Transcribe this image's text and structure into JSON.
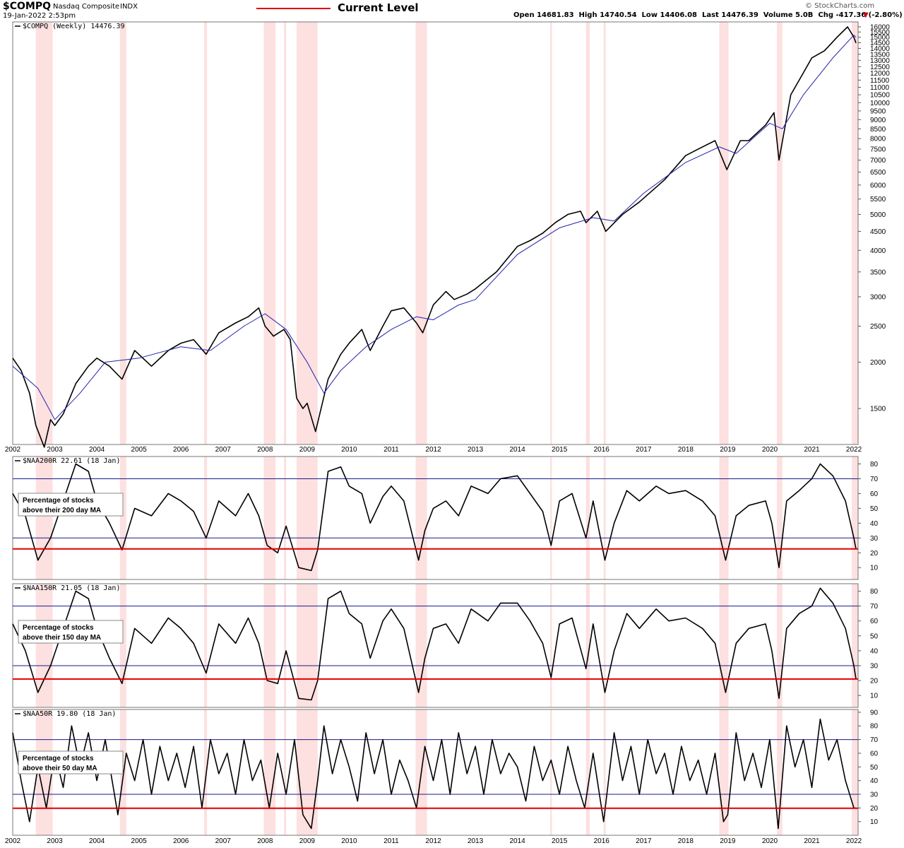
{
  "header": {
    "symbol": "$COMPQ",
    "name": "Nasdaq Composite",
    "exchange": "INDX",
    "date": "19-Jan-2022 2:53pm",
    "legend_label": "Current Level",
    "legend_color": "#e00000",
    "watermark": "© StockCharts.com",
    "ohlc": "Open 14681.83  High 14740.54  Low 14406.08  Last 14476.39  Volume 5.0B  Chg -417.36 (-2.80%)"
  },
  "colors": {
    "price": "#000000",
    "ma": "#2222aa",
    "shade": "#fde0e0",
    "level_line": "#e00000",
    "ref_line": "#1a1a8c"
  },
  "chart_data": [
    {
      "type": "line",
      "title": "$COMPQ (Weekly) 14476.39",
      "scale": "log",
      "ylim": [
        1200,
        16500
      ],
      "yticks": [
        1500,
        2000,
        2500,
        3000,
        3500,
        4000,
        4500,
        5000,
        5500,
        6000,
        6500,
        7000,
        7500,
        8000,
        8500,
        9000,
        9500,
        10000,
        10500,
        11000,
        11500,
        12000,
        12500,
        13000,
        13500,
        14000,
        14500,
        15000,
        15500,
        16000
      ],
      "xlim": [
        2002.0,
        2022.1
      ],
      "xticks": [
        "2002",
        "2003",
        "2004",
        "2005",
        "2006",
        "2007",
        "2008",
        "2009",
        "2010",
        "2011",
        "2012",
        "2013",
        "2014",
        "2015",
        "2016",
        "2017",
        "2018",
        "2019",
        "2020",
        "2021",
        "2022"
      ],
      "shaded_periods": [
        [
          2002.55,
          2002.95
        ],
        [
          2004.55,
          2004.7
        ],
        [
          2006.55,
          2006.62
        ],
        [
          2007.97,
          2008.25
        ],
        [
          2008.45,
          2008.5
        ],
        [
          2008.75,
          2009.25
        ],
        [
          2011.58,
          2011.85
        ],
        [
          2014.78,
          2014.82
        ],
        [
          2015.63,
          2015.72
        ],
        [
          2016.05,
          2016.1
        ],
        [
          2018.8,
          2019.02
        ],
        [
          2020.17,
          2020.3
        ],
        [
          2021.95,
          2022.1
        ]
      ],
      "series": [
        {
          "name": "$COMPQ (Weekly)",
          "x": [
            2002.0,
            2002.2,
            2002.4,
            2002.55,
            2002.75,
            2002.9,
            2003.0,
            2003.2,
            2003.5,
            2003.8,
            2004.0,
            2004.3,
            2004.6,
            2004.9,
            2005.3,
            2005.7,
            2006.0,
            2006.3,
            2006.6,
            2006.9,
            2007.3,
            2007.6,
            2007.85,
            2008.0,
            2008.2,
            2008.45,
            2008.6,
            2008.75,
            2008.9,
            2009.0,
            2009.2,
            2009.5,
            2009.8,
            2010.0,
            2010.3,
            2010.5,
            2010.8,
            2011.0,
            2011.3,
            2011.6,
            2011.75,
            2012.0,
            2012.3,
            2012.5,
            2012.8,
            2013.0,
            2013.5,
            2014.0,
            2014.3,
            2014.6,
            2014.9,
            2015.2,
            2015.5,
            2015.63,
            2015.9,
            2016.1,
            2016.5,
            2016.9,
            2017.5,
            2018.0,
            2018.3,
            2018.7,
            2018.98,
            2019.3,
            2019.5,
            2019.9,
            2020.1,
            2020.22,
            2020.5,
            2020.7,
            2021.0,
            2021.3,
            2021.6,
            2021.85,
            2022.0,
            2022.05
          ],
          "values": [
            2050,
            1900,
            1650,
            1350,
            1180,
            1400,
            1350,
            1450,
            1750,
            1950,
            2050,
            1950,
            1800,
            2150,
            1950,
            2150,
            2250,
            2300,
            2100,
            2400,
            2550,
            2650,
            2800,
            2500,
            2350,
            2450,
            2300,
            1600,
            1500,
            1550,
            1300,
            1800,
            2100,
            2250,
            2450,
            2150,
            2500,
            2750,
            2800,
            2550,
            2400,
            2850,
            3100,
            2950,
            3050,
            3150,
            3500,
            4100,
            4250,
            4450,
            4750,
            5000,
            5100,
            4750,
            5100,
            4500,
            5000,
            5400,
            6200,
            7200,
            7500,
            7900,
            6600,
            7900,
            7900,
            8700,
            9400,
            7000,
            10500,
            11500,
            13200,
            13800,
            15000,
            16000,
            15000,
            14476
          ]
        },
        {
          "name": "MA",
          "x": [
            2002.0,
            2002.6,
            2003.0,
            2003.6,
            2004.2,
            2005.0,
            2006.0,
            2006.7,
            2007.5,
            2008.0,
            2008.5,
            2009.0,
            2009.4,
            2009.8,
            2010.4,
            2011.0,
            2011.6,
            2012.0,
            2012.6,
            2013.0,
            2014.0,
            2015.0,
            2015.8,
            2016.3,
            2017.0,
            2018.0,
            2018.8,
            2019.2,
            2020.0,
            2020.3,
            2020.8,
            2021.5,
            2022.0,
            2022.05
          ],
          "values": [
            1950,
            1700,
            1400,
            1650,
            2000,
            2050,
            2200,
            2150,
            2500,
            2700,
            2450,
            2000,
            1650,
            1900,
            2200,
            2450,
            2650,
            2600,
            2850,
            2950,
            3900,
            4600,
            4900,
            4800,
            5700,
            6900,
            7600,
            7300,
            8800,
            8500,
            10500,
            13200,
            15200,
            15000
          ]
        }
      ]
    },
    {
      "type": "line",
      "title": "$NAA200R 22.61 (18 Jan)",
      "annotation_line1": "Percentage of stocks",
      "annotation_line2": "above their 200 day MA",
      "ylim": [
        2,
        85
      ],
      "yticks": [
        10,
        20,
        30,
        40,
        50,
        60,
        70,
        80
      ],
      "ref_lines": [
        30,
        70
      ],
      "current_level": 22.61,
      "series": [
        {
          "x": [
            2002.0,
            2002.3,
            2002.6,
            2002.9,
            2003.2,
            2003.5,
            2003.8,
            2004.0,
            2004.3,
            2004.6,
            2004.9,
            2005.3,
            2005.7,
            2006.0,
            2006.3,
            2006.6,
            2006.9,
            2007.3,
            2007.6,
            2007.85,
            2008.05,
            2008.3,
            2008.5,
            2008.8,
            2009.1,
            2009.25,
            2009.5,
            2009.8,
            2010.0,
            2010.3,
            2010.5,
            2010.8,
            2011.0,
            2011.3,
            2011.65,
            2011.8,
            2012.0,
            2012.3,
            2012.6,
            2012.9,
            2013.3,
            2013.6,
            2014.0,
            2014.3,
            2014.6,
            2014.8,
            2015.0,
            2015.3,
            2015.63,
            2015.8,
            2016.08,
            2016.3,
            2016.6,
            2016.9,
            2017.3,
            2017.6,
            2018.0,
            2018.4,
            2018.7,
            2018.95,
            2019.2,
            2019.5,
            2019.9,
            2020.05,
            2020.22,
            2020.4,
            2020.7,
            2021.0,
            2021.2,
            2021.5,
            2021.8,
            2022.0,
            2022.05
          ],
          "values": [
            60,
            45,
            15,
            30,
            55,
            80,
            75,
            55,
            40,
            22,
            50,
            45,
            60,
            55,
            48,
            30,
            55,
            45,
            60,
            45,
            25,
            20,
            38,
            10,
            8,
            22,
            75,
            78,
            65,
            60,
            40,
            58,
            65,
            55,
            15,
            35,
            50,
            55,
            45,
            65,
            60,
            70,
            72,
            60,
            48,
            25,
            55,
            60,
            30,
            55,
            15,
            40,
            62,
            55,
            65,
            60,
            62,
            55,
            45,
            15,
            45,
            52,
            55,
            40,
            10,
            55,
            62,
            70,
            80,
            72,
            55,
            30,
            22.61
          ]
        }
      ]
    },
    {
      "type": "line",
      "title": "$NAA150R 21.05 (18 Jan)",
      "annotation_line1": "Percentage of stocks",
      "annotation_line2": "above their 150 day MA",
      "ylim": [
        2,
        85
      ],
      "yticks": [
        10,
        20,
        30,
        40,
        50,
        60,
        70,
        80
      ],
      "ref_lines": [
        30,
        70
      ],
      "current_level": 21.05,
      "series": [
        {
          "x": [
            2002.0,
            2002.3,
            2002.6,
            2002.9,
            2003.2,
            2003.5,
            2003.8,
            2004.0,
            2004.3,
            2004.6,
            2004.9,
            2005.3,
            2005.7,
            2006.0,
            2006.3,
            2006.6,
            2006.9,
            2007.3,
            2007.6,
            2007.85,
            2008.05,
            2008.3,
            2008.5,
            2008.8,
            2009.1,
            2009.25,
            2009.5,
            2009.8,
            2010.0,
            2010.3,
            2010.5,
            2010.8,
            2011.0,
            2011.3,
            2011.65,
            2011.8,
            2012.0,
            2012.3,
            2012.6,
            2012.9,
            2013.3,
            2013.6,
            2014.0,
            2014.3,
            2014.6,
            2014.8,
            2015.0,
            2015.3,
            2015.63,
            2015.8,
            2016.08,
            2016.3,
            2016.6,
            2016.9,
            2017.3,
            2017.6,
            2018.0,
            2018.4,
            2018.7,
            2018.95,
            2019.2,
            2019.5,
            2019.9,
            2020.05,
            2020.22,
            2020.4,
            2020.7,
            2021.0,
            2021.2,
            2021.5,
            2021.8,
            2022.0,
            2022.05
          ],
          "values": [
            58,
            40,
            12,
            30,
            55,
            80,
            75,
            55,
            35,
            18,
            55,
            45,
            62,
            55,
            45,
            25,
            58,
            45,
            62,
            45,
            20,
            18,
            40,
            8,
            7,
            20,
            75,
            80,
            65,
            58,
            35,
            60,
            68,
            55,
            12,
            35,
            55,
            58,
            45,
            68,
            60,
            72,
            72,
            60,
            45,
            22,
            58,
            62,
            28,
            58,
            12,
            40,
            65,
            55,
            68,
            60,
            62,
            55,
            45,
            12,
            45,
            55,
            58,
            40,
            8,
            55,
            65,
            70,
            82,
            72,
            55,
            30,
            21.05
          ]
        }
      ]
    },
    {
      "type": "line",
      "title": "$NAA50R 19.80 (18 Jan)",
      "annotation_line1": "Percentage of stocks",
      "annotation_line2": "above their 50 day MA",
      "ylim": [
        0,
        92
      ],
      "yticks": [
        10,
        20,
        30,
        40,
        50,
        60,
        70,
        80,
        90
      ],
      "ref_lines": [
        30,
        70
      ],
      "current_level": 19.8,
      "series": [
        {
          "x": [
            2002.0,
            2002.2,
            2002.4,
            2002.6,
            2002.8,
            2003.0,
            2003.2,
            2003.4,
            2003.6,
            2003.8,
            2004.0,
            2004.2,
            2004.5,
            2004.7,
            2004.9,
            2005.1,
            2005.3,
            2005.5,
            2005.7,
            2005.9,
            2006.1,
            2006.3,
            2006.5,
            2006.7,
            2006.9,
            2007.1,
            2007.3,
            2007.5,
            2007.7,
            2007.9,
            2008.1,
            2008.3,
            2008.5,
            2008.7,
            2008.9,
            2009.1,
            2009.25,
            2009.4,
            2009.6,
            2009.8,
            2010.0,
            2010.2,
            2010.4,
            2010.6,
            2010.8,
            2011.0,
            2011.2,
            2011.4,
            2011.6,
            2011.8,
            2012.0,
            2012.2,
            2012.4,
            2012.6,
            2012.8,
            2013.0,
            2013.2,
            2013.4,
            2013.6,
            2013.8,
            2014.0,
            2014.2,
            2014.4,
            2014.6,
            2014.8,
            2015.0,
            2015.2,
            2015.4,
            2015.6,
            2015.8,
            2016.05,
            2016.3,
            2016.5,
            2016.7,
            2016.9,
            2017.1,
            2017.3,
            2017.5,
            2017.7,
            2017.9,
            2018.1,
            2018.3,
            2018.5,
            2018.7,
            2018.9,
            2019.0,
            2019.2,
            2019.4,
            2019.6,
            2019.8,
            2020.0,
            2020.2,
            2020.4,
            2020.6,
            2020.8,
            2021.0,
            2021.2,
            2021.4,
            2021.6,
            2021.8,
            2022.0,
            2022.05
          ],
          "values": [
            75,
            40,
            10,
            50,
            20,
            60,
            35,
            80,
            50,
            75,
            40,
            70,
            15,
            60,
            40,
            70,
            30,
            65,
            40,
            60,
            35,
            65,
            20,
            70,
            45,
            60,
            30,
            70,
            40,
            55,
            20,
            60,
            30,
            70,
            15,
            5,
            40,
            80,
            45,
            70,
            50,
            25,
            75,
            45,
            70,
            30,
            55,
            40,
            20,
            65,
            40,
            70,
            30,
            75,
            45,
            65,
            30,
            70,
            45,
            60,
            50,
            25,
            65,
            40,
            55,
            30,
            65,
            40,
            20,
            60,
            10,
            75,
            40,
            65,
            30,
            70,
            45,
            60,
            30,
            65,
            40,
            55,
            30,
            60,
            10,
            15,
            75,
            40,
            60,
            35,
            70,
            5,
            80,
            50,
            70,
            35,
            85,
            55,
            70,
            40,
            20,
            19.8
          ]
        }
      ]
    }
  ]
}
